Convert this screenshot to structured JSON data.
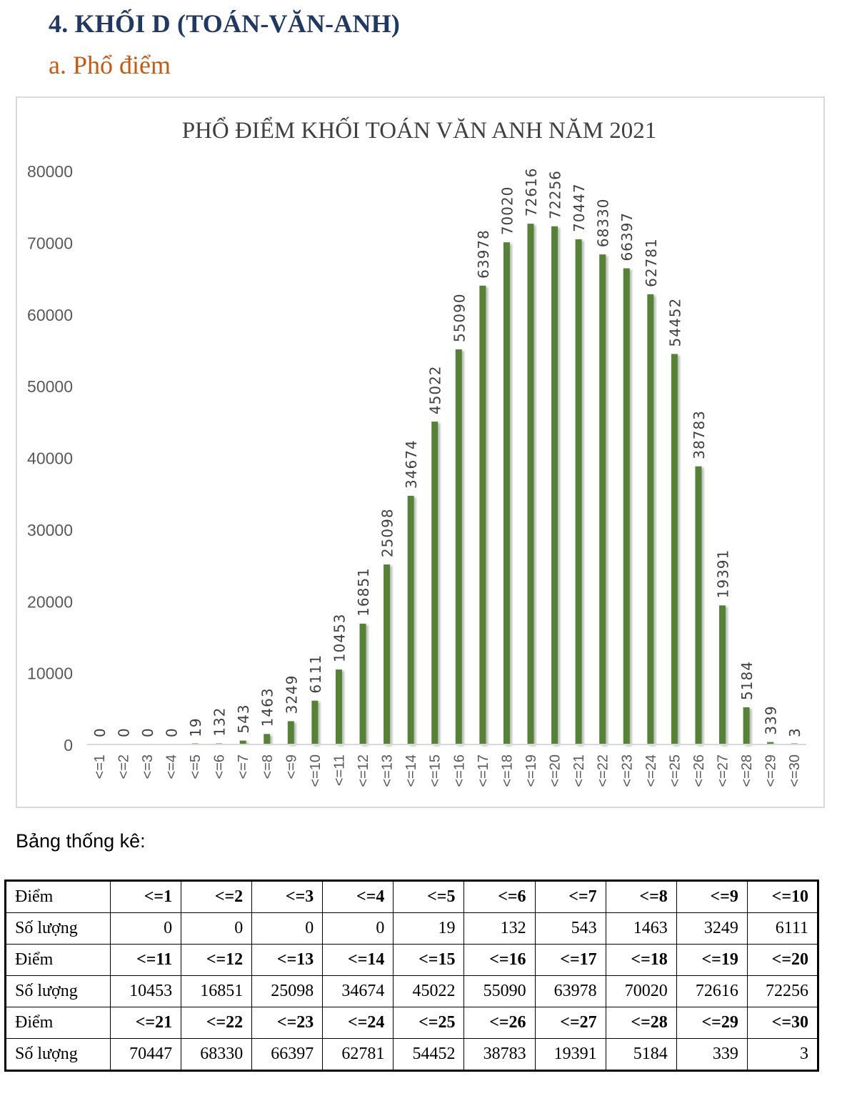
{
  "header": {
    "title": "4.  KHỐI D (TOÁN-VĂN-ANH)",
    "subtitle": "a.  Phổ điểm"
  },
  "chart_data": {
    "type": "bar",
    "title": "PHỔ ĐIỂM KHỐI TOÁN VĂN ANH NĂM 2021",
    "xlabel": "",
    "ylabel": "",
    "ylim": [
      0,
      80000
    ],
    "yticks": [
      0,
      10000,
      20000,
      30000,
      40000,
      50000,
      60000,
      70000,
      80000
    ],
    "grid": false,
    "bar_color": "#548235",
    "categories": [
      "<=1",
      "<=2",
      "<=3",
      "<=4",
      "<=5",
      "<=6",
      "<=7",
      "<=8",
      "<=9",
      "<=10",
      "<=11",
      "<=12",
      "<=13",
      "<=14",
      "<=15",
      "<=16",
      "<=17",
      "<=18",
      "<=19",
      "<=20",
      "<=21",
      "<=22",
      "<=23",
      "<=24",
      "<=25",
      "<=26",
      "<=27",
      "<=28",
      "<=29",
      "<=30"
    ],
    "values": [
      0,
      0,
      0,
      0,
      19,
      132,
      543,
      1463,
      3249,
      6111,
      10453,
      16851,
      25098,
      34674,
      45022,
      55090,
      63978,
      70020,
      72616,
      72256,
      70447,
      68330,
      66397,
      62781,
      54452,
      38783,
      19391,
      5184,
      339,
      3
    ]
  },
  "stats": {
    "label": "Bảng thống kê:",
    "score_label": "Điểm",
    "count_label": "Số lượng",
    "rows": [
      {
        "scores": [
          "<=1",
          "<=2",
          "<=3",
          "<=4",
          "<=5",
          "<=6",
          "<=7",
          "<=8",
          "<=9",
          "<=10"
        ],
        "counts": [
          "0",
          "0",
          "0",
          "0",
          "19",
          "132",
          "543",
          "1463",
          "3249",
          "6111"
        ]
      },
      {
        "scores": [
          "<=11",
          "<=12",
          "<=13",
          "<=14",
          "<=15",
          "<=16",
          "<=17",
          "<=18",
          "<=19",
          "<=20"
        ],
        "counts": [
          "10453",
          "16851",
          "25098",
          "34674",
          "45022",
          "55090",
          "63978",
          "70020",
          "72616",
          "72256"
        ]
      },
      {
        "scores": [
          "<=21",
          "<=22",
          "<=23",
          "<=24",
          "<=25",
          "<=26",
          "<=27",
          "<=28",
          "<=29",
          "<=30"
        ],
        "counts": [
          "70447",
          "68330",
          "66397",
          "62781",
          "54452",
          "38783",
          "19391",
          "5184",
          "339",
          "3"
        ]
      }
    ]
  }
}
